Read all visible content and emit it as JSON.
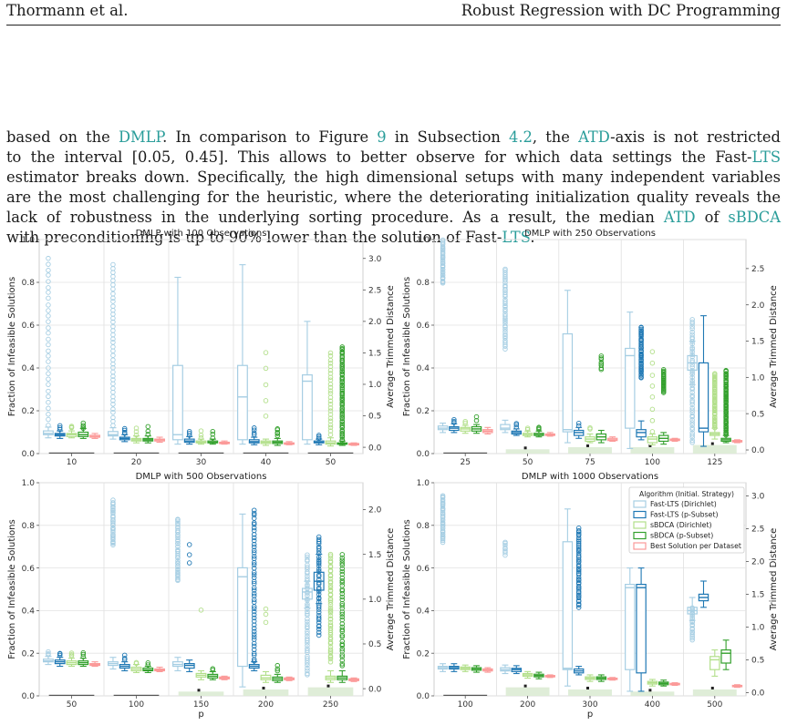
{
  "header": {
    "left": "Thormann et al.",
    "right": "Robust Regression with DC Programming"
  },
  "paragraph": [
    [
      {
        "t": "based on the "
      },
      {
        "t": "DMLP",
        "link": true
      },
      {
        "t": ". In comparison to Figure "
      },
      {
        "t": "9",
        "link": true
      },
      {
        "t": " in Subsection "
      },
      {
        "t": "4.2",
        "link": true
      },
      {
        "t": ", the "
      },
      {
        "t": "ATD",
        "link": true
      },
      {
        "t": "-axis is not restricted"
      }
    ],
    [
      {
        "t": "to the interval [0.05, 0.45]. This allows to better observe for which data settings the Fast-"
      },
      {
        "t": "LTS",
        "link": true
      }
    ],
    [
      {
        "t": "estimator breaks down. Specifically, the high dimensional setups with many independent variables"
      }
    ],
    [
      {
        "t": "are the most challenging for the heuristic, where the deteriorating initialization quality reveals the"
      }
    ],
    [
      {
        "t": "lack of robustness in the underlying sorting procedure. As a result, the median "
      },
      {
        "t": "ATD",
        "link": true
      },
      {
        "t": " of "
      },
      {
        "t": "sBDCA",
        "link": true
      }
    ],
    [
      {
        "t": "with preconditioning is up to 90% lower than the solution of Fast-"
      },
      {
        "t": "LTS",
        "link": true
      },
      {
        "t": "."
      }
    ]
  ],
  "colors": {
    "fast_dir": "#a6cee3",
    "fast_p": "#1f78b4",
    "sb_dir": "#b2df8a",
    "sb_p": "#33a02c",
    "best": "#fb9a99",
    "link": "#2a9d9a"
  },
  "legend": {
    "title": "Algorithm (Initial. Strategy)",
    "items": [
      {
        "label": "Fast-LTS (Dirichlet)",
        "color": "#a6cee3"
      },
      {
        "label": "Fast-LTS (p-Subset)",
        "color": "#1f78b4"
      },
      {
        "label": "sBDCA (Dirichlet)",
        "color": "#b2df8a"
      },
      {
        "label": "sBDCA (p-Subset)",
        "color": "#33a02c"
      },
      {
        "label": "Best Solution per Dataset",
        "color": "#fb9a99"
      }
    ]
  },
  "chart_data": [
    {
      "type": "box",
      "title": "DMLP with 100 Observations",
      "xlabel": "",
      "ylabel": "Fraction of Infeasible Solutions",
      "y2label": "Average Trimmed Distance",
      "categories": [
        "10",
        "20",
        "30",
        "40",
        "50"
      ],
      "ylim": [
        0,
        1.0
      ],
      "y2lim": [
        -0.1,
        3.3
      ],
      "yticks": [
        "0.0",
        "0.2",
        "0.4",
        "0.6",
        "0.8",
        "1.0"
      ],
      "y2ticks": [
        "0.0",
        "0.5",
        "1.0",
        "1.5",
        "2.0",
        "2.5",
        "3.0"
      ],
      "fraction_infeasible": [
        0,
        0,
        0.004,
        0.004,
        0.004
      ],
      "atd_median": [
        [
          0.22,
          0.2,
          0.2,
          0.2,
          0.16
        ],
        [
          0.12,
          0.1,
          0.1,
          0.09,
          0.07
        ],
        [
          0.2,
          0.09,
          0.08,
          0.08,
          0.08
        ],
        [
          0.8,
          0.12,
          0.11,
          0.06,
          0.06
        ],
        [
          1.2,
          0.55,
          0.1,
          0.08,
          0.04
        ]
      ]
    },
    {
      "type": "box",
      "title": "DMLP with 250 Observations",
      "xlabel": "",
      "ylabel": "Fraction of Infeasible Solutions",
      "y2label": "Average Trimmed Distance",
      "categories": [
        "25",
        "50",
        "75",
        "100",
        "125"
      ],
      "ylim": [
        0,
        1.0
      ],
      "y2lim": [
        -0.05,
        2.9
      ],
      "yticks": [
        "0.0",
        "0.2",
        "0.4",
        "0.6",
        "0.8",
        "1.0"
      ],
      "y2ticks": [
        "0.0",
        "0.5",
        "1.0",
        "1.5",
        "2.0",
        "2.5"
      ],
      "fraction_infeasible": [
        0.004,
        0.02,
        0.03,
        0.03,
        0.04
      ]
    },
    {
      "type": "box",
      "title": "DMLP with 500 Observations",
      "xlabel": "p",
      "ylabel": "Fraction of Infeasible Solutions",
      "y2label": "Average Trimmed Distance",
      "categories": [
        "50",
        "100",
        "150",
        "200",
        "250"
      ],
      "ylim": [
        0,
        1.0
      ],
      "y2lim": [
        -0.08,
        2.3
      ],
      "yticks": [
        "0.0",
        "0.2",
        "0.4",
        "0.6",
        "0.8",
        "1.0"
      ],
      "y2ticks": [
        "0.0",
        "0.5",
        "1.0",
        "1.5",
        "2.0"
      ],
      "fraction_infeasible": [
        0,
        0,
        0.02,
        0.03,
        0.04
      ]
    },
    {
      "type": "box",
      "title": "DMLP with 1000 Observations",
      "xlabel": "p",
      "ylabel": "Fraction of Infeasible Solutions",
      "y2label": "Average Trimmed Distance",
      "categories": [
        "100",
        "200",
        "300",
        "400",
        "500"
      ],
      "ylim": [
        0,
        1.0
      ],
      "y2lim": [
        -0.05,
        3.2
      ],
      "yticks": [
        "0.0",
        "0.2",
        "0.4",
        "0.6",
        "0.8",
        "1.0"
      ],
      "y2ticks": [
        "0.0",
        "0.5",
        "1.0",
        "1.5",
        "2.0",
        "2.5",
        "3.0"
      ],
      "fraction_infeasible": [
        0,
        0.04,
        0.03,
        0.02,
        0.03
      ]
    }
  ]
}
